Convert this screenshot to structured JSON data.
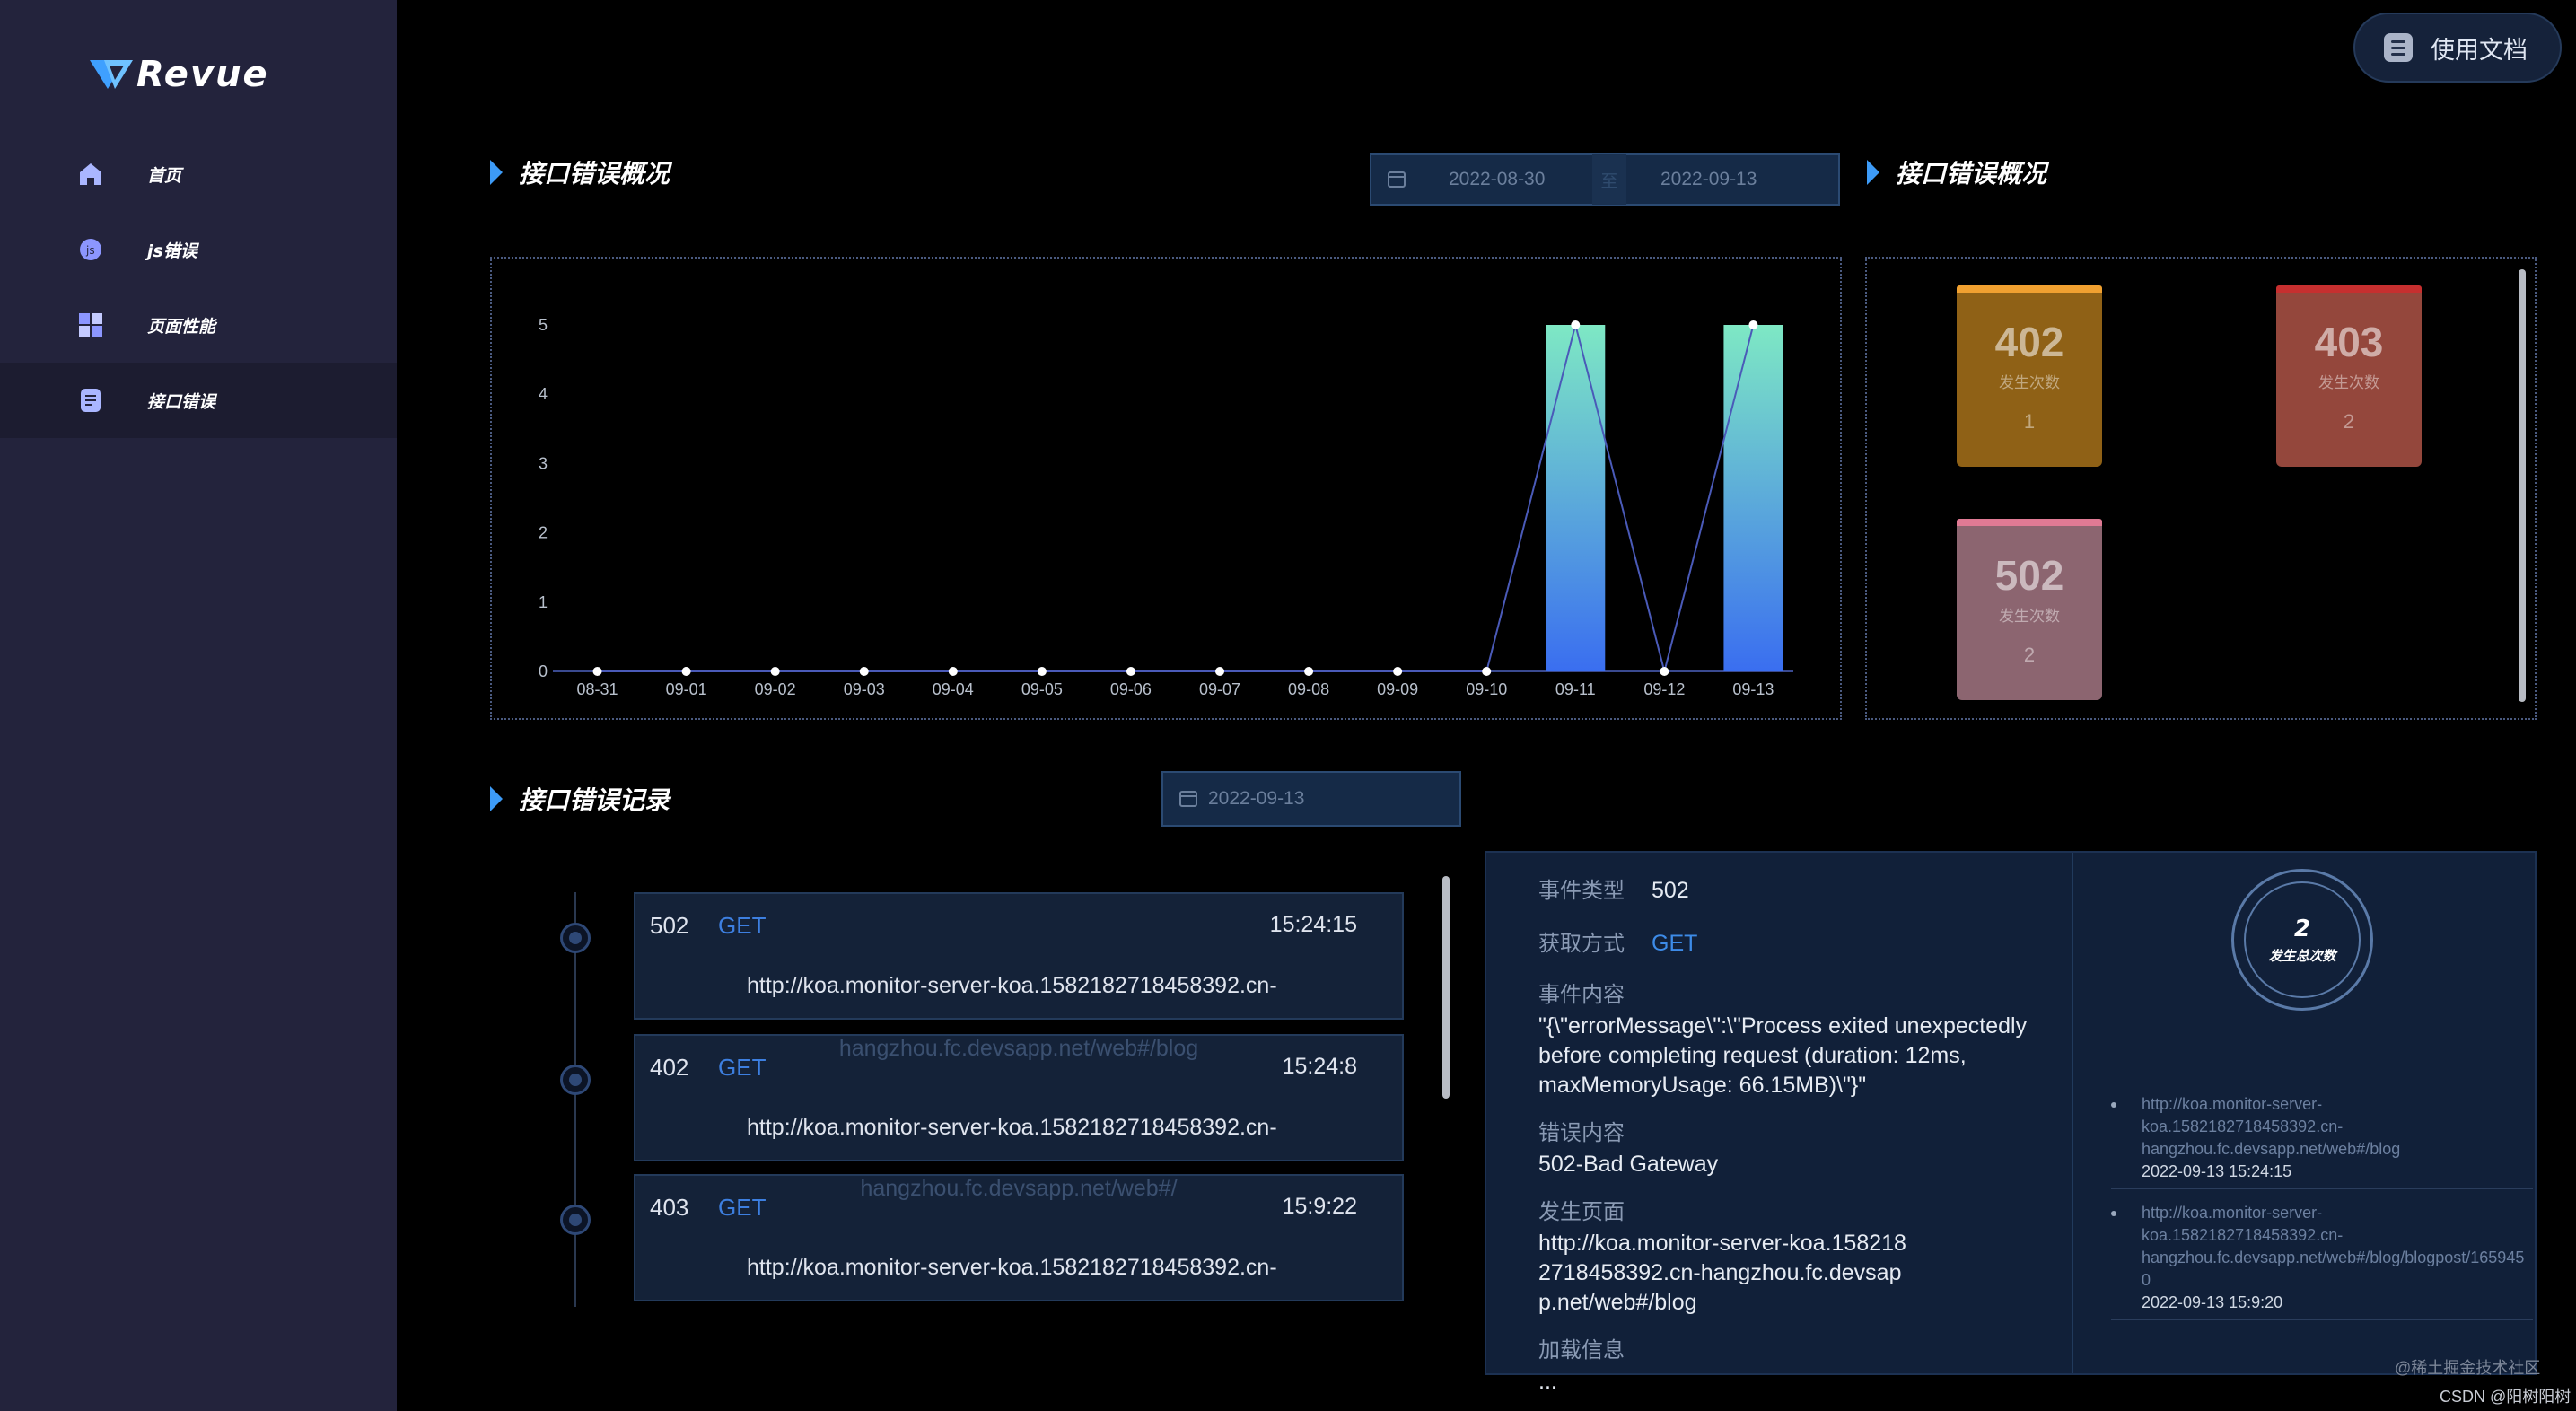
{
  "app": {
    "logo_text": "Revue"
  },
  "sidebar": {
    "items": [
      {
        "label": "首页",
        "icon": "home-icon"
      },
      {
        "label": "js错误",
        "icon": "js-icon"
      },
      {
        "label": "页面性能",
        "icon": "grid-icon"
      },
      {
        "label": "接口错误",
        "icon": "document-icon",
        "active": true
      }
    ]
  },
  "header": {
    "doc_button_label": "使用文档"
  },
  "overview": {
    "title": "接口错误概况",
    "start_date": "2022-08-30",
    "range_separator": "至",
    "end_date": "2022-09-13"
  },
  "status_overview": {
    "title": "接口错误概况",
    "cards": [
      {
        "code": "402",
        "label": "发生次数",
        "count": "1",
        "bar_color": "#f0a030",
        "bg_color": "#8f6116"
      },
      {
        "code": "403",
        "label": "发生次数",
        "count": "2",
        "bar_color": "#c62f2f",
        "bg_color": "#94473c"
      },
      {
        "code": "502",
        "label": "发生次数",
        "count": "2",
        "bar_color": "#e07a94",
        "bg_color": "#8c6570"
      }
    ]
  },
  "chart_data": {
    "type": "bar",
    "categories": [
      "08-31",
      "09-01",
      "09-02",
      "09-03",
      "09-04",
      "09-05",
      "09-06",
      "09-07",
      "09-08",
      "09-09",
      "09-10",
      "09-11",
      "09-12",
      "09-13"
    ],
    "values": [
      0,
      0,
      0,
      0,
      0,
      0,
      0,
      0,
      0,
      0,
      0,
      5,
      0,
      5
    ],
    "line_values": [
      0,
      0,
      0,
      0,
      0,
      0,
      0,
      0,
      0,
      0,
      0,
      5,
      0,
      5
    ],
    "yticks": [
      "0",
      "1",
      "2",
      "3",
      "4",
      "5"
    ],
    "ylim": [
      0,
      5
    ],
    "bar_gradient": [
      "#7ee8c4",
      "#3a6ef0"
    ],
    "line_color": "#4a5ab8"
  },
  "records": {
    "title": "接口错误记录",
    "date": "2022-09-13",
    "items": [
      {
        "status": "502",
        "method": "GET",
        "time": "15:24:15",
        "url_line1": "http://koa.monitor-server-koa.1582182718458392.cn-",
        "url_line2": "hangzhou.fc.devsapp.net/web#/blog"
      },
      {
        "status": "402",
        "method": "GET",
        "time": "15:24:8",
        "url_line1": "http://koa.monitor-server-koa.1582182718458392.cn-",
        "url_line2": "hangzhou.fc.devsapp.net/web#/"
      },
      {
        "status": "403",
        "method": "GET",
        "time": "15:9:22",
        "url_line1": "http://koa.monitor-server-koa.1582182718458392.cn-",
        "url_line2": ""
      }
    ]
  },
  "detail": {
    "event_type_label": "事件类型",
    "event_type": "502",
    "method_label": "获取方式",
    "method": "GET",
    "content_label": "事件内容",
    "content": "\"{\\\"errorMessage\\\":\\\"Process exited unexpectedly before completing request (duration: 12ms, maxMemoryUsage: 66.15MB)\\\"}\"",
    "error_label": "错误内容",
    "error": "502-Bad Gateway",
    "page_label": "发生页面",
    "page": "http://koa.monitor-server-koa.1582182718458392.cn-hangzhou.fc.devsapp.net/web#/blog",
    "load_label": "加载信息",
    "load": "...",
    "total_count": "2",
    "total_label": "发生总次数",
    "events": [
      {
        "url": "http://koa.monitor-server-\nkoa.1582182718458392.cn-\nhangzhou.fc.devsapp.net/web#/blog",
        "time": "2022-09-13 15:24:15"
      },
      {
        "url": "http://koa.monitor-server-\nkoa.1582182718458392.cn-\nhangzhou.fc.devsapp.net/web#/blog/blogpost/1659450",
        "time": "2022-09-13 15:9:20"
      }
    ]
  },
  "watermarks": {
    "line1": "@稀土掘金技术社区",
    "line2": "CSDN @阳树阳树"
  }
}
